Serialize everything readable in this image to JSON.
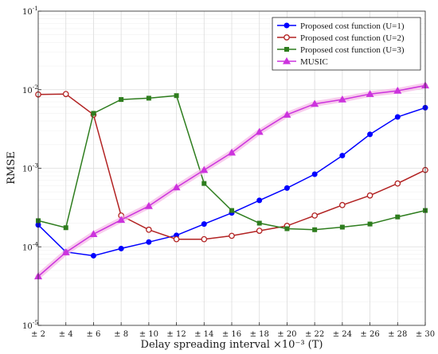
{
  "chart_data": {
    "type": "line",
    "xlabel": "Delay spreading interval ×10⁻³ (T)",
    "ylabel": "RMSE",
    "yscale": "log",
    "ylim": [
      1e-05,
      0.1
    ],
    "grid": true,
    "legend_position": "top-right",
    "categories": [
      "± 2",
      "± 4",
      "± 6",
      "± 8",
      "± 10",
      "± 12",
      "± 14",
      "± 16",
      "± 18",
      "± 20",
      "± 22",
      "± 24",
      "± 26",
      "± 28",
      "± 30"
    ],
    "y_ticks": [
      {
        "base": "10",
        "exp": "-1",
        "value": 0.1
      },
      {
        "base": "10",
        "exp": "-2",
        "value": 0.01
      },
      {
        "base": "10",
        "exp": "-3",
        "value": 0.001
      },
      {
        "base": "10",
        "exp": "-4",
        "value": 0.0001
      },
      {
        "base": "10",
        "exp": "-5",
        "value": 1e-05
      }
    ],
    "series": [
      {
        "name": "Proposed cost function (U=1)",
        "color": "#0000ff",
        "marker": "circle-filled",
        "values": [
          0.00019,
          8.6e-05,
          7.7e-05,
          9.5e-05,
          0.000115,
          0.00014,
          0.000195,
          0.00027,
          0.00039,
          0.00056,
          0.00084,
          0.00145,
          0.0027,
          0.0045,
          0.0059
        ]
      },
      {
        "name": "Proposed cost function (U=2)",
        "color": "#b22222",
        "marker": "circle-open",
        "values": [
          0.0087,
          0.0088,
          0.0048,
          0.00025,
          0.000165,
          0.000125,
          0.000125,
          0.000138,
          0.00016,
          0.000185,
          0.00025,
          0.00034,
          0.00045,
          0.00064,
          0.00095
        ]
      },
      {
        "name": "Proposed cost function (U=3)",
        "color": "#2e7d1e",
        "marker": "square-filled",
        "values": [
          0.000215,
          0.000175,
          0.005,
          0.0075,
          0.0078,
          0.0084,
          0.00064,
          0.00029,
          0.0002,
          0.00017,
          0.000165,
          0.000178,
          0.000195,
          0.00024,
          0.00029
        ]
      },
      {
        "name": "MUSIC",
        "color": "#cc33dd",
        "marker": "triangle-filled",
        "values": [
          4.2e-05,
          8.5e-05,
          0.000145,
          0.00022,
          0.00033,
          0.00057,
          0.00095,
          0.00158,
          0.0029,
          0.0048,
          0.0066,
          0.0075,
          0.0088,
          0.0097,
          0.0113
        ]
      }
    ]
  }
}
